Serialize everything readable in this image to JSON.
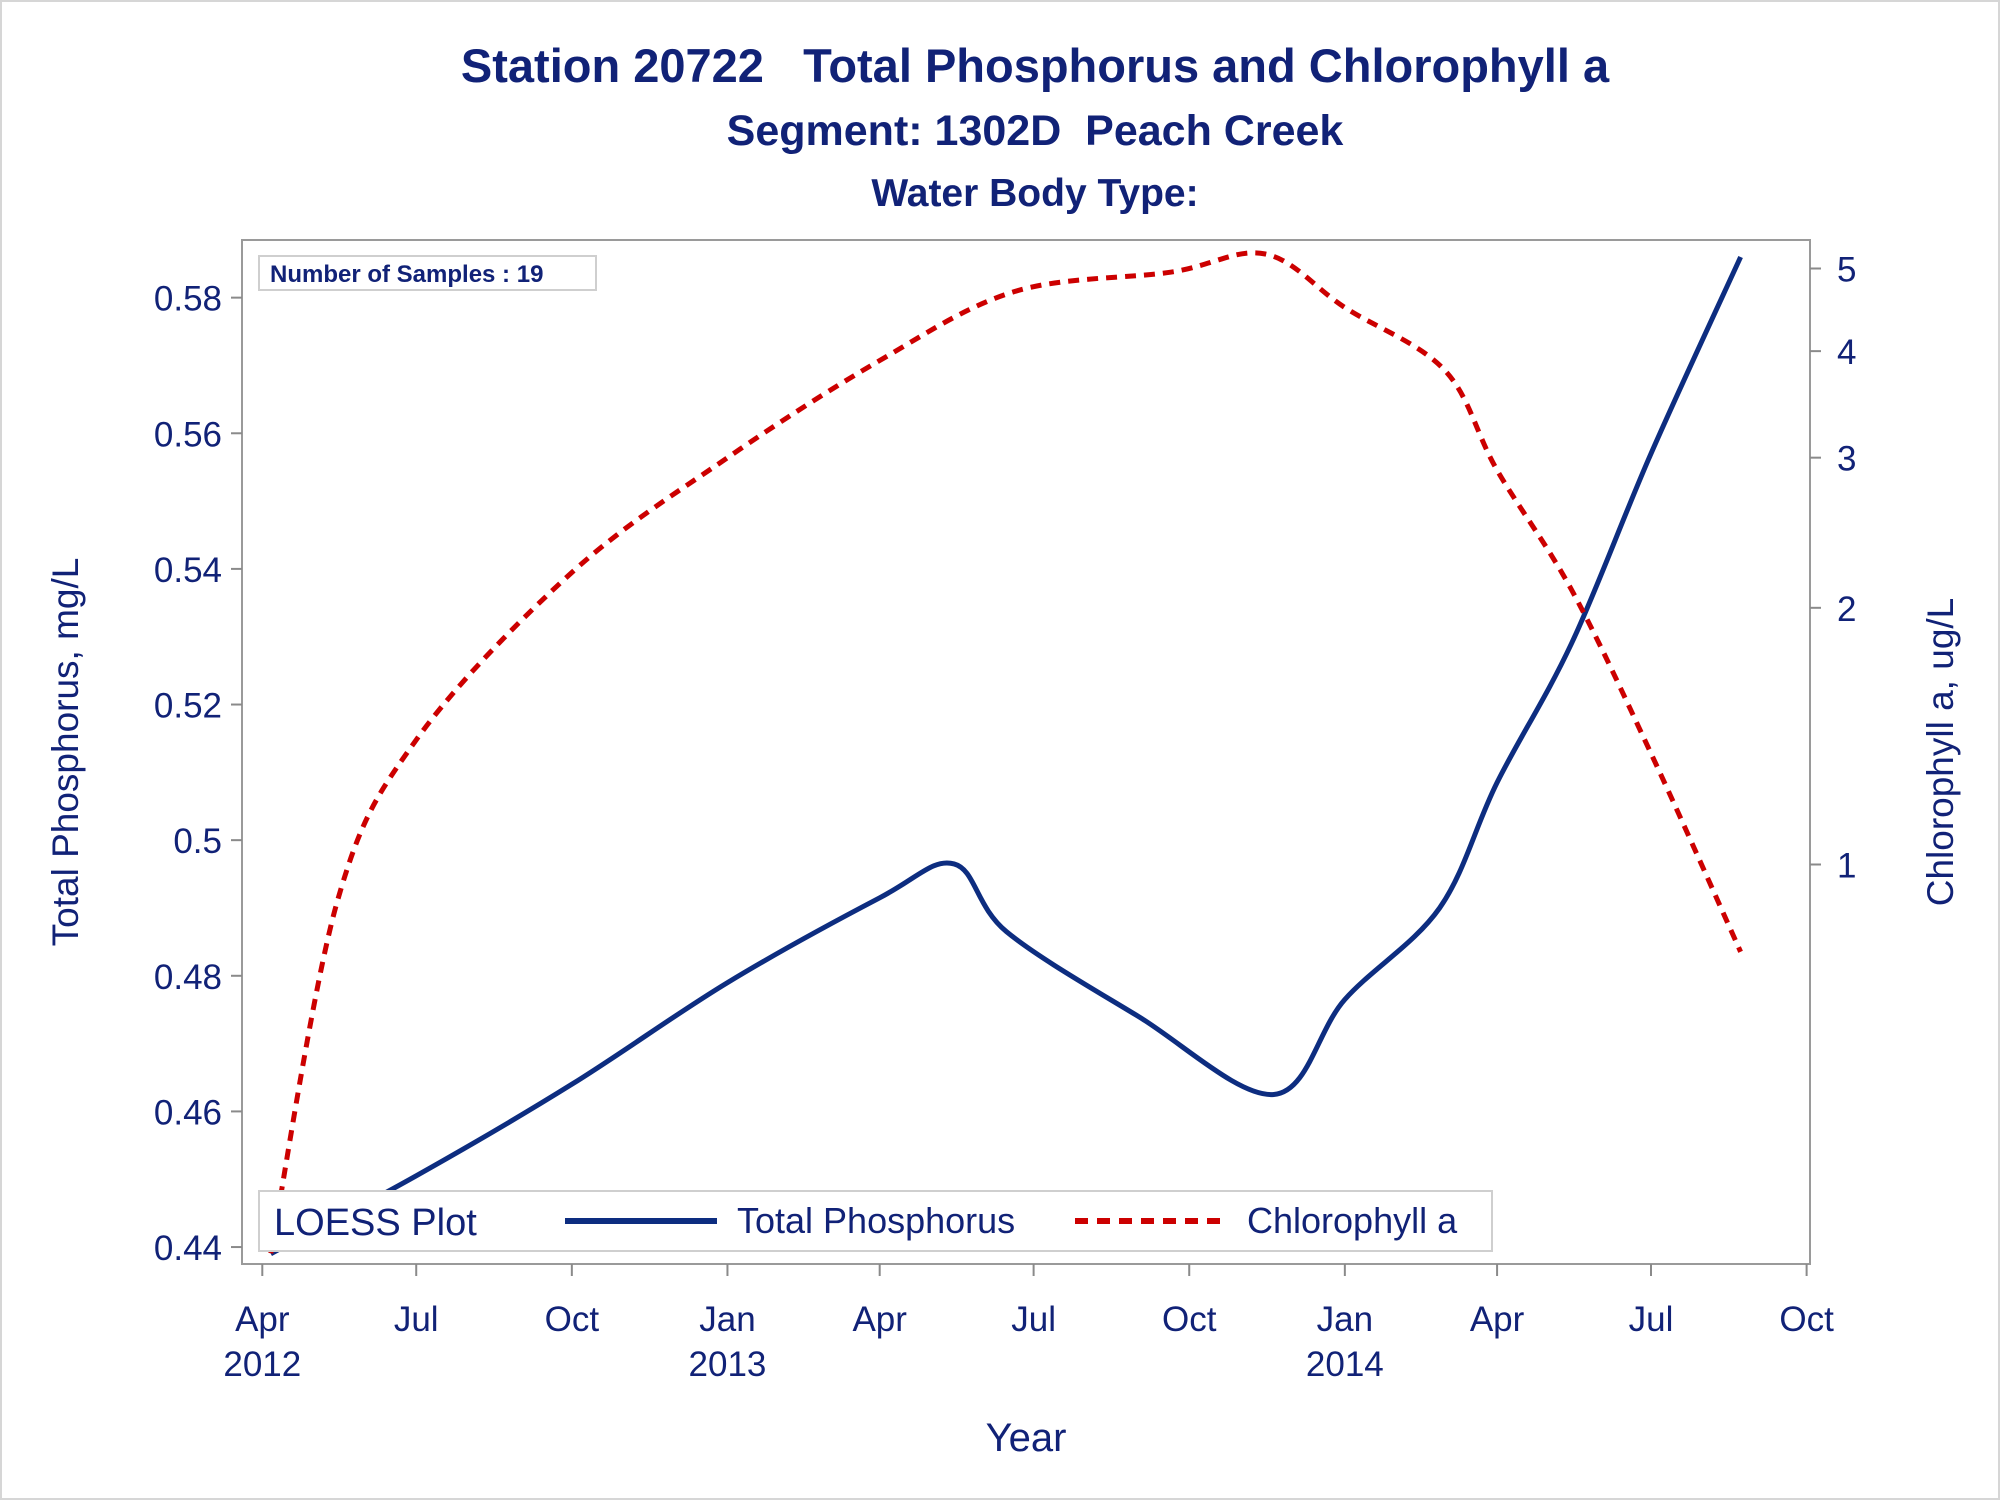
{
  "chart_data": {
    "type": "line",
    "title": "Station 20722   Total Phosphorus and Chlorophyll a",
    "subtitle": "Segment: 1302D  Peach Creek",
    "subtitle2": "Water Body Type:",
    "xlabel": "Year",
    "ylabel": "Total Phosphorus, mg/L",
    "y2label": "Chlorophyll a, ug/L",
    "inset_label": "Number of Samples : 19",
    "legend_title": "LOESS Plot",
    "legend_position": "bottom-inside",
    "grid": false,
    "x_ticks": [
      "Apr\n2012",
      "Jul",
      "Oct",
      "Jan\n2013",
      "Apr",
      "Jul",
      "Oct",
      "Jan\n2014",
      "Apr",
      "Jul",
      "Oct"
    ],
    "x_tick_dates": [
      "2012-04-01",
      "2012-07-01",
      "2012-10-01",
      "2013-01-01",
      "2013-04-01",
      "2013-07-01",
      "2013-10-01",
      "2014-01-01",
      "2014-04-01",
      "2014-07-01",
      "2014-10-01"
    ],
    "xlim": [
      "2012-03-20",
      "2014-10-03"
    ],
    "y_ticks": [
      0.44,
      0.46,
      0.48,
      0.5,
      0.52,
      0.54,
      0.56,
      0.58
    ],
    "y_tick_labels": [
      "0.44",
      "0.46",
      "0.48",
      "0.5",
      "0.52",
      "0.54",
      "0.56",
      "0.58"
    ],
    "ylim": [
      0.4375,
      0.5885
    ],
    "y2_ticks": [
      1,
      2,
      3,
      4,
      5
    ],
    "y2_tick_labels": [
      "1",
      "2",
      "3",
      "4",
      "5"
    ],
    "y2_scale": "log",
    "y2lim": [
      0.34,
      5.4
    ],
    "series": [
      {
        "name": "Total Phosphorus",
        "axis": "left",
        "color": "#0d2d80",
        "style": "solid",
        "points": [
          {
            "x": "2012-04-06",
            "y": 0.439
          },
          {
            "x": "2012-07-01",
            "y": 0.4505
          },
          {
            "x": "2012-10-01",
            "y": 0.464
          },
          {
            "x": "2013-01-01",
            "y": 0.479
          },
          {
            "x": "2013-04-01",
            "y": 0.4915
          },
          {
            "x": "2013-05-15",
            "y": 0.4965
          },
          {
            "x": "2013-06-15",
            "y": 0.4865
          },
          {
            "x": "2013-09-01",
            "y": 0.474
          },
          {
            "x": "2013-11-20",
            "y": 0.4625
          },
          {
            "x": "2014-01-01",
            "y": 0.4765
          },
          {
            "x": "2014-02-26",
            "y": 0.49
          },
          {
            "x": "2014-04-01",
            "y": 0.5085
          },
          {
            "x": "2014-05-15",
            "y": 0.529
          },
          {
            "x": "2014-07-01",
            "y": 0.557
          },
          {
            "x": "2014-08-23",
            "y": 0.586
          }
        ]
      },
      {
        "name": "Chlorophyll a",
        "axis": "right",
        "color": "#cc0000",
        "style": "dashed",
        "points": [
          {
            "x": "2012-04-06",
            "y": 0.35
          },
          {
            "x": "2012-05-15",
            "y": 0.9
          },
          {
            "x": "2012-07-01",
            "y": 1.4
          },
          {
            "x": "2012-10-01",
            "y": 2.2
          },
          {
            "x": "2013-01-01",
            "y": 3.0
          },
          {
            "x": "2013-04-01",
            "y": 3.9
          },
          {
            "x": "2013-06-20",
            "y": 4.7
          },
          {
            "x": "2013-09-20",
            "y": 4.95
          },
          {
            "x": "2013-11-15",
            "y": 5.2
          },
          {
            "x": "2014-01-01",
            "y": 4.5
          },
          {
            "x": "2014-03-01",
            "y": 3.8
          },
          {
            "x": "2014-04-01",
            "y": 2.9
          },
          {
            "x": "2014-05-15",
            "y": 2.1
          },
          {
            "x": "2014-07-01",
            "y": 1.35
          },
          {
            "x": "2014-08-23",
            "y": 0.79
          }
        ]
      }
    ]
  }
}
